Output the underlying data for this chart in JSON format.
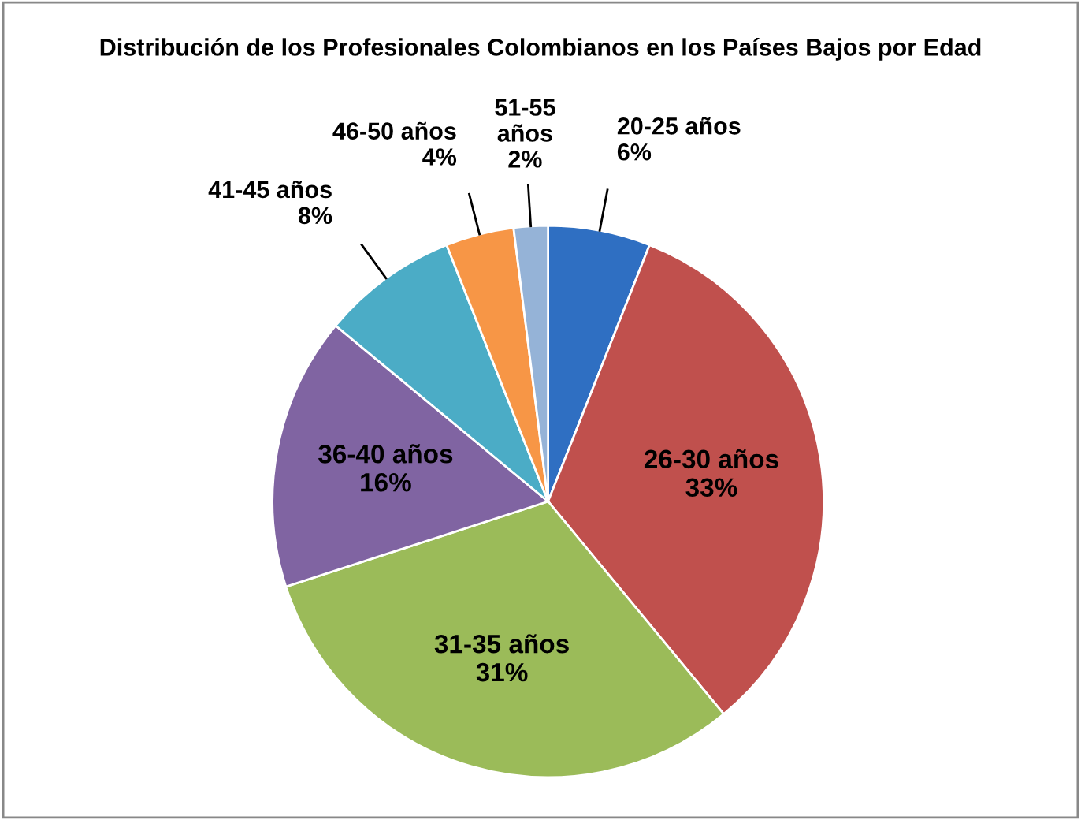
{
  "chart_data": {
    "type": "pie",
    "title": "Distribución de los Profesionales Colombianos en los Países Bajos por Edad",
    "categories": [
      "20-25 años",
      "26-30 años",
      "31-35 años",
      "36-40 años",
      "41-45 años",
      "46-50 años",
      "51-55 años"
    ],
    "values": [
      6,
      33,
      31,
      16,
      8,
      4,
      2
    ],
    "value_labels": [
      "6%",
      "33%",
      "31%",
      "16%",
      "8%",
      "4%",
      "2%"
    ],
    "colors": [
      "#2f6fc2",
      "#c0504d",
      "#9bbb59",
      "#8064a2",
      "#4bacc6",
      "#f79646",
      "#95b3d7"
    ],
    "legend": false
  }
}
